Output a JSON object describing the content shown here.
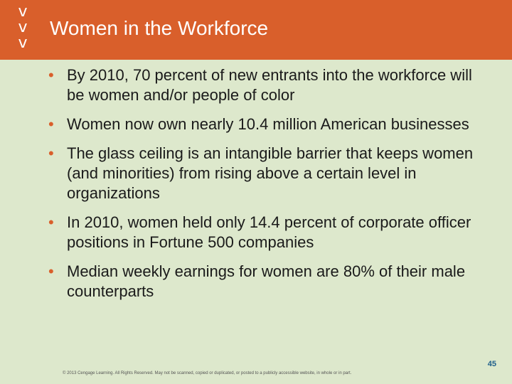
{
  "header": {
    "chevrons": [
      "v",
      "v",
      "v"
    ],
    "title": "Women in the Workforce"
  },
  "bullets": [
    {
      "pre": "By 2010, 70 percent of new entrants into the workforce will be women and/or people of color"
    },
    {
      "pre": "Women now own nearly 10.4 million American businesses"
    },
    {
      "pre": "The ",
      "em": "glass ceiling",
      "post": " is an intangible barrier that keeps women (and minorities) from rising above a certain level in organizations"
    },
    {
      "pre": "In 2010, women held only 14.4 percent of corporate officer positions in Fortune 500 companies"
    },
    {
      "pre": "Median weekly earnings for women are 80% of their male counterparts"
    }
  ],
  "bullet_marker": "•",
  "footer": {
    "copyright": "© 2013 Cengage Learning. All Rights Reserved. May not be scanned, copied or duplicated, or posted to a publicly accessible website, in whole or in part.",
    "page": "45"
  },
  "colors": {
    "header_bg": "#d95f2b",
    "slide_bg": "#dde8cc",
    "bullet": "#d95f2b",
    "page_number": "#1f5f8b"
  }
}
